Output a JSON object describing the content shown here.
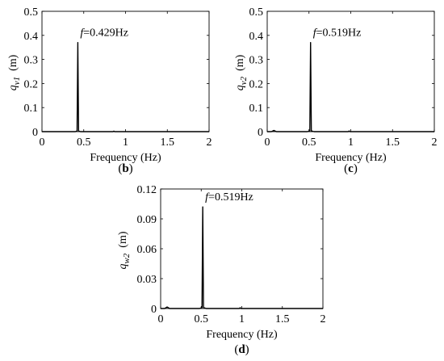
{
  "chart_data": [
    {
      "type": "line",
      "panel_label": "b",
      "xlabel": "Frequency (Hz)",
      "ylabel": "q_v1 (m)",
      "ylabel_base": "q",
      "ylabel_sub": "v1",
      "ylabel_unit": "(m)",
      "xlim": [
        0,
        2
      ],
      "ylim": [
        0,
        0.5
      ],
      "xticks": [
        0,
        0.5,
        1,
        1.5,
        2
      ],
      "yticks": [
        0,
        0.1,
        0.2,
        0.3,
        0.4,
        0.5
      ],
      "xtick_labels": [
        "0",
        "0.5",
        "1",
        "1.5",
        "2"
      ],
      "ytick_labels": [
        "0",
        "0.1",
        "0.2",
        "0.3",
        "0.4",
        "0.5"
      ],
      "annotation": {
        "prefix": "f",
        "text": "=0.429Hz",
        "x": 0.429,
        "y": 0.37
      },
      "x": [
        0,
        0.4,
        0.42,
        0.429,
        0.438,
        0.46,
        0.85,
        0.86,
        0.87,
        2.0
      ],
      "y": [
        0,
        0,
        0.003,
        0.37,
        0.003,
        0,
        0,
        0.002,
        0,
        0
      ]
    },
    {
      "type": "line",
      "panel_label": "c",
      "xlabel": "Frequency (Hz)",
      "ylabel": "q_v2 (m)",
      "ylabel_base": "q",
      "ylabel_sub": "v2",
      "ylabel_unit": "(m)",
      "xlim": [
        0,
        2
      ],
      "ylim": [
        0,
        0.5
      ],
      "xticks": [
        0,
        0.5,
        1,
        1.5,
        2
      ],
      "yticks": [
        0,
        0.1,
        0.2,
        0.3,
        0.4,
        0.5
      ],
      "xtick_labels": [
        "0",
        "0.5",
        "1",
        "1.5",
        "2"
      ],
      "ytick_labels": [
        "0",
        "0.1",
        "0.2",
        "0.3",
        "0.4",
        "0.5"
      ],
      "annotation": {
        "prefix": "f",
        "text": "=0.519Hz",
        "x": 0.519,
        "y": 0.37
      },
      "x": [
        0,
        0.05,
        0.08,
        0.11,
        0.48,
        0.51,
        0.519,
        0.528,
        0.56,
        0.97,
        0.98,
        0.99,
        2.0
      ],
      "y": [
        0,
        0,
        0.005,
        0,
        0,
        0.003,
        0.37,
        0.003,
        0,
        0,
        0.003,
        0,
        0
      ]
    },
    {
      "type": "line",
      "panel_label": "d",
      "xlabel": "Frequency (Hz)",
      "ylabel": "q_w2 (m)",
      "ylabel_base": "q",
      "ylabel_sub": "w2",
      "ylabel_unit": "(m)",
      "xlim": [
        0,
        2
      ],
      "ylim": [
        0,
        0.12
      ],
      "xticks": [
        0,
        0.5,
        1,
        1.5,
        2
      ],
      "yticks": [
        0,
        0.03,
        0.06,
        0.09,
        0.12
      ],
      "xtick_labels": [
        "0",
        "0.5",
        "1",
        "1.5",
        "2"
      ],
      "ytick_labels": [
        "0",
        "0.03",
        "0.06",
        "0.09",
        "0.12"
      ],
      "annotation": {
        "prefix": "f",
        "text": "=0.519Hz",
        "x": 0.519,
        "y": 0.102
      },
      "x": [
        0,
        0.05,
        0.08,
        0.11,
        0.48,
        0.51,
        0.519,
        0.528,
        0.56,
        0.97,
        0.98,
        0.99,
        2.0
      ],
      "y": [
        0,
        0,
        0.0015,
        0,
        0,
        0.001,
        0.102,
        0.001,
        0,
        0,
        0.0008,
        0,
        0
      ]
    }
  ]
}
